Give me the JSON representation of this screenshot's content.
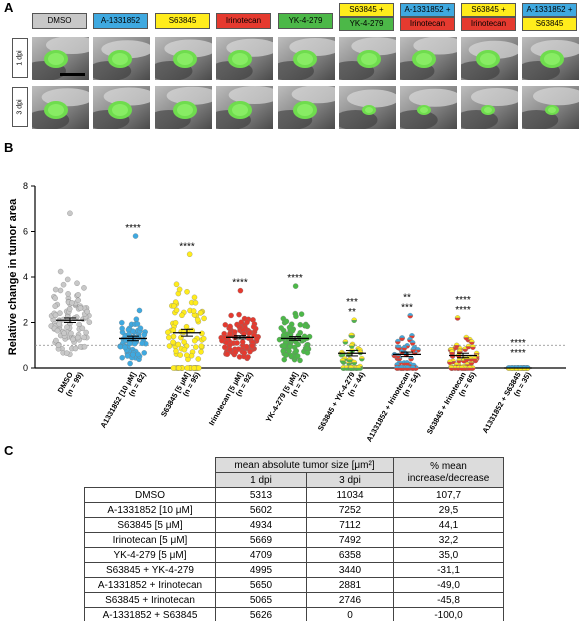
{
  "panel_a": {
    "letter": "A",
    "treatments": [
      {
        "lines": [
          "DMSO"
        ],
        "colors": [
          "#c8c8c8"
        ]
      },
      {
        "lines": [
          "A-1331852"
        ],
        "colors": [
          "#3fa9e0"
        ]
      },
      {
        "lines": [
          "S63845"
        ],
        "colors": [
          "#ffec1c"
        ]
      },
      {
        "lines": [
          "Irinotecan"
        ],
        "colors": [
          "#e53a2f"
        ]
      },
      {
        "lines": [
          "YK-4-279"
        ],
        "colors": [
          "#4cb848"
        ]
      },
      {
        "lines": [
          "S63845 +",
          "YK-4-279"
        ],
        "colors": [
          "#ffec1c",
          "#4cb848"
        ]
      },
      {
        "lines": [
          "A-1331852 +",
          "Irinotecan"
        ],
        "colors": [
          "#3fa9e0",
          "#e53a2f"
        ]
      },
      {
        "lines": [
          "S63845 +",
          "Irinotecan"
        ],
        "colors": [
          "#ffec1c",
          "#e53a2f"
        ]
      },
      {
        "lines": [
          "A-1331852 +",
          "S63845"
        ],
        "colors": [
          "#3fa9e0",
          "#ffec1c"
        ]
      }
    ],
    "row_labels": [
      "1 dpi",
      "3 dpi"
    ]
  },
  "panel_b": {
    "letter": "B",
    "chart_data": {
      "type": "scatter",
      "ylabel": "Relative change in tumor area",
      "yticks": [
        "0",
        "2",
        "4",
        "6",
        "8"
      ],
      "ylim": [
        0,
        8
      ],
      "reference_line": 1,
      "groups": [
        {
          "label": "DMSO",
          "n": "(n = 99)",
          "color": "#c8c8c8",
          "mean": 2.1,
          "sem": 0.1,
          "spread": 1.7,
          "max": 6.8,
          "stars": []
        },
        {
          "label": "A1331852 [10 μM]",
          "n": "(n = 62)",
          "color": "#3fa9e0",
          "mean": 1.3,
          "sem": 0.1,
          "spread": 1.0,
          "max": 5.8,
          "stars": [
            "****"
          ]
        },
        {
          "label": "S63845 [5 μM]",
          "n": "(n = 95)",
          "color": "#ffec1c",
          "mean": 1.55,
          "sem": 0.15,
          "spread": 1.6,
          "max": 5.0,
          "stars": [
            "****"
          ]
        },
        {
          "label": "Irinotecan [5 μM]",
          "n": "(n = 92)",
          "color": "#e53a2f",
          "mean": 1.35,
          "sem": 0.07,
          "spread": 0.8,
          "max": 3.4,
          "stars": [
            "****"
          ]
        },
        {
          "label": "YK-4-279 [5 μM]",
          "n": "(n = 73)",
          "color": "#4cb848",
          "mean": 1.3,
          "sem": 0.08,
          "spread": 0.9,
          "max": 3.6,
          "stars": [
            "****"
          ]
        },
        {
          "label": "S63845 + YK-4-279",
          "n": "(n = 44)",
          "color": "#ffec1c",
          "color2": "#4cb848",
          "mean": 0.65,
          "sem": 0.12,
          "spread": 0.8,
          "max": 2.1,
          "stars": [
            "***",
            "**"
          ]
        },
        {
          "label": "A1331852 + Irinotecan",
          "n": "(n = 54)",
          "color": "#3fa9e0",
          "color2": "#e53a2f",
          "mean": 0.6,
          "sem": 0.1,
          "spread": 0.7,
          "max": 2.3,
          "stars": [
            "**",
            "***"
          ]
        },
        {
          "label": "S63845 + Irinotecan",
          "n": "(n = 65)",
          "color": "#ffec1c",
          "color2": "#e53a2f",
          "mean": 0.55,
          "sem": 0.1,
          "spread": 0.7,
          "max": 2.2,
          "stars": [
            "****",
            "****"
          ]
        },
        {
          "label": "A1331852 + S63845",
          "n": "(n = 35)",
          "color": "#3fa9e0",
          "color2": "#ffec1c",
          "mean": 0.0,
          "sem": 0.0,
          "spread": 0.0,
          "max": 0.0,
          "stars": [
            "****",
            "****"
          ]
        }
      ]
    }
  },
  "panel_c": {
    "letter": "C",
    "header_group": "mean absolute tumor size [μm²]",
    "header_change": "% mean increase/decrease",
    "col_1dpi": "1 dpi",
    "col_3dpi": "3 dpi",
    "rows": [
      {
        "name": "DMSO",
        "d1": "5313",
        "d3": "11034",
        "pct": "107,7"
      },
      {
        "name": "A-1331852 [10 μM]",
        "d1": "5602",
        "d3": "7252",
        "pct": "29,5"
      },
      {
        "name": "S63845 [5 μM]",
        "d1": "4934",
        "d3": "7112",
        "pct": "44,1"
      },
      {
        "name": "Irinotecan [5 μM]",
        "d1": "5669",
        "d3": "7492",
        "pct": "32,2"
      },
      {
        "name": "YK-4-279 [5 μM]",
        "d1": "4709",
        "d3": "6358",
        "pct": "35,0"
      },
      {
        "name": "S63845 + YK-4-279",
        "d1": "4995",
        "d3": "3440",
        "pct": "-31,1"
      },
      {
        "name": "A-1331852 + Irinotecan",
        "d1": "5650",
        "d3": "2881",
        "pct": "-49,0"
      },
      {
        "name": "S63845 + Irinotecan",
        "d1": "5065",
        "d3": "2746",
        "pct": "-45,8"
      },
      {
        "name": "A-1331852 + S63845",
        "d1": "5626",
        "d3": "0",
        "pct": "-100,0"
      }
    ]
  }
}
